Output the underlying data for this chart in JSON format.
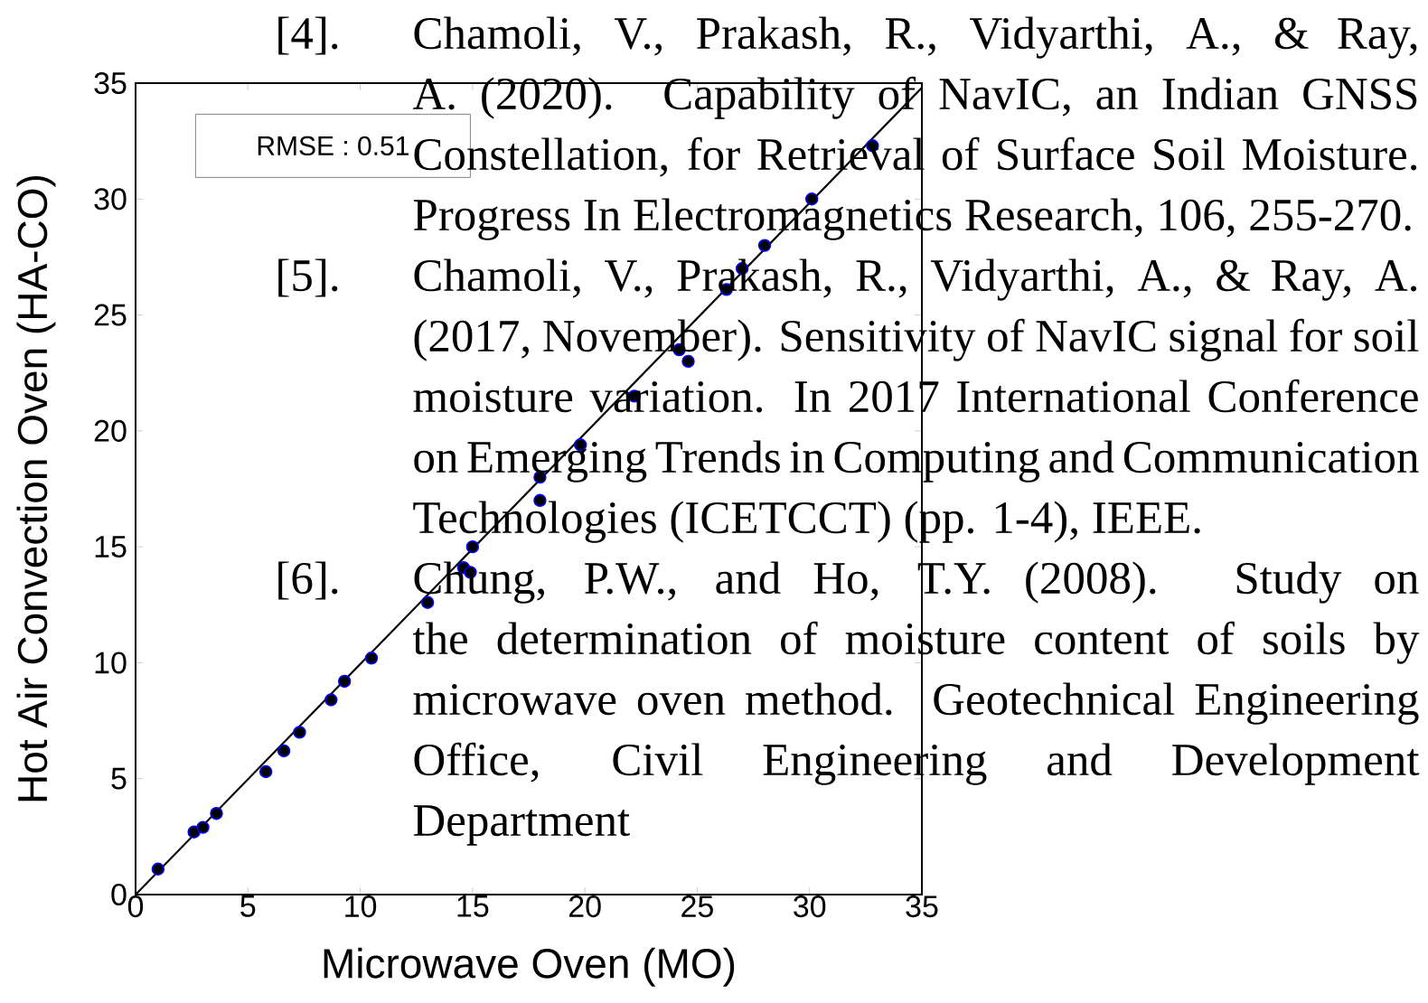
{
  "chart_data": {
    "type": "scatter",
    "xlabel": "Microwave Oven (MO)",
    "ylabel": "Hot Air Convection Oven (HA-CO)",
    "xlim": [
      0,
      35
    ],
    "ylim": [
      0,
      35
    ],
    "xticks": [
      0,
      5,
      10,
      15,
      20,
      25,
      30,
      35
    ],
    "yticks": [
      0,
      5,
      10,
      15,
      20,
      25,
      30,
      35
    ],
    "grid": false,
    "series": [
      {
        "type": "scatter",
        "marker": "circle",
        "color": "#000000",
        "x": [
          1,
          2.6,
          3,
          3.6,
          5.8,
          6.6,
          7.3,
          8.7,
          9.3,
          10.5,
          13,
          14.6,
          14.9,
          15,
          18,
          18,
          19.8,
          22.2,
          24.2,
          24.6,
          26.3,
          27,
          28,
          30.1,
          32.8
        ],
        "values": [
          1.1,
          2.7,
          2.9,
          3.5,
          5.3,
          6.2,
          7.0,
          8.4,
          9.2,
          10.2,
          12.6,
          14.1,
          13.9,
          15,
          17,
          18,
          19.4,
          21.5,
          23.5,
          23,
          26.1,
          27,
          28,
          30,
          32.3
        ]
      },
      {
        "type": "line",
        "color": "#000000",
        "line_style": "solid",
        "marker": "none",
        "x": [
          0,
          35
        ],
        "values": [
          0,
          34.8
        ]
      }
    ],
    "annotations": [
      "RMSE : 0.51",
      "[4].",
      "Chamoli, V., Prakash, R., Vidyarthi, A., & Ray, A. (2020). Capability of NavIC, an Indian GNSS Constellation, for Retrieval of Surface Soil Moisture. Progress In Electromagnetics Research, 106, 255-270.",
      "[5].",
      "Chamoli, V., Prakash, R., Vidyarthi, A., & Ray, A. (2017, November). Sensitivity of NavIC signal for soil moisture variation. In 2017 International Conference on Emerging Trends in Computing and Communication Technologies (ICETCCT) (pp. 1-4), IEEE.",
      "[6].",
      "Chung, P.W., and Ho, T.Y. (2008). Study on the determination of moisture content of soils by microwave oven method. Geotechnical Engineering Office, Civil Engineering and Development Department"
    ]
  }
}
